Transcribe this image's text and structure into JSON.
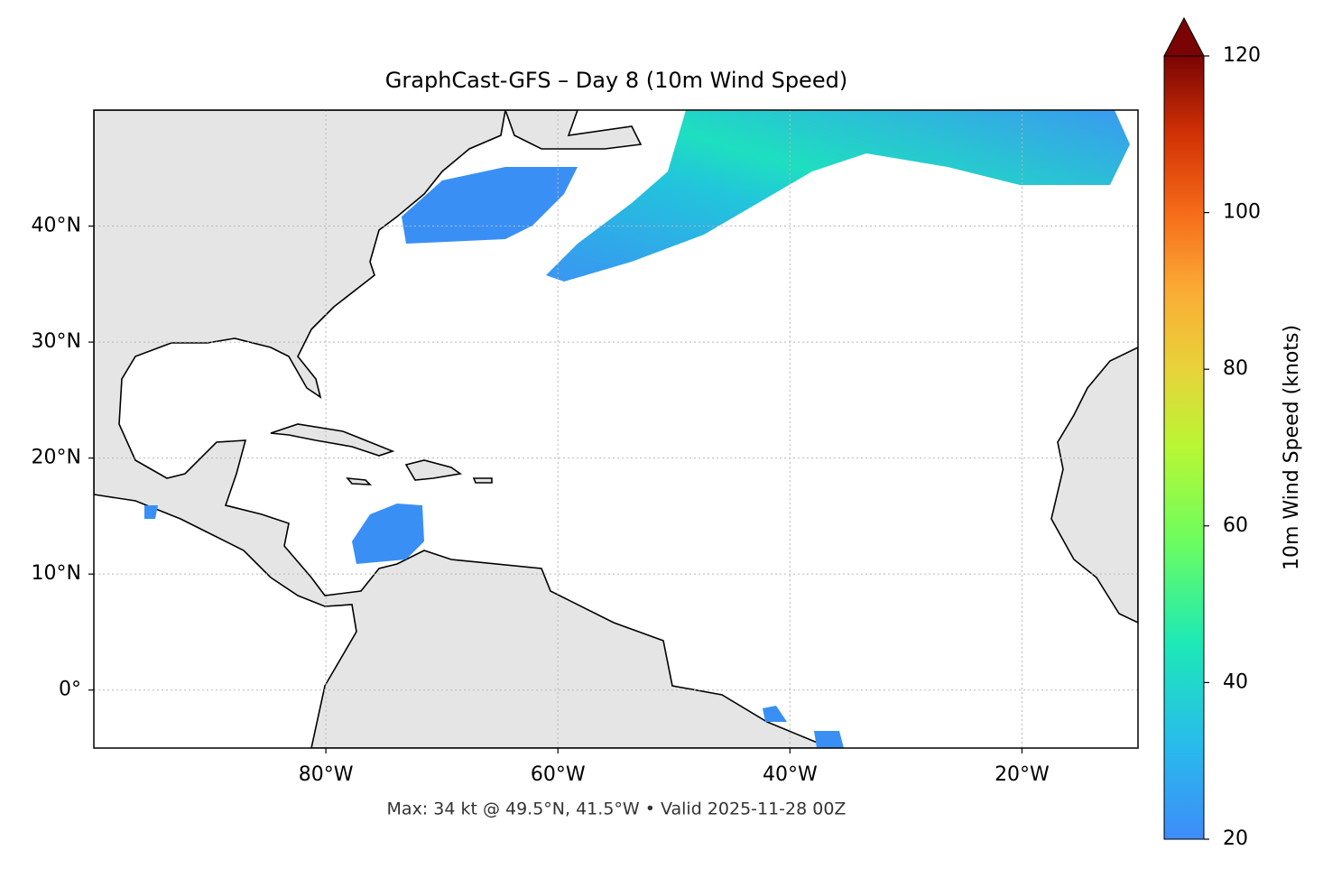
{
  "chart_data": {
    "type": "map",
    "title": "GraphCast-GFS – Day 8 (10m Wind Speed)",
    "footnote": "Max: 34 kt @ 49.5°N, 41.5°W • Valid 2025-11-28 00Z",
    "xlim": [
      -100,
      -10
    ],
    "ylim": [
      -5,
      50
    ],
    "xticks": [
      {
        "value": -80,
        "label": "80°W"
      },
      {
        "value": -60,
        "label": "60°W"
      },
      {
        "value": -40,
        "label": "40°W"
      },
      {
        "value": -20,
        "label": "20°W"
      }
    ],
    "yticks": [
      {
        "value": 0,
        "label": "0°"
      },
      {
        "value": 10,
        "label": "10°N"
      },
      {
        "value": 20,
        "label": "20°N"
      },
      {
        "value": 30,
        "label": "30°N"
      },
      {
        "value": 40,
        "label": "40°N"
      }
    ],
    "grid": true,
    "colorbar": {
      "label": "10m Wind Speed (knots)",
      "lim": [
        20,
        120
      ],
      "ticks": [
        20,
        40,
        60,
        80,
        100,
        120
      ]
    }
  }
}
